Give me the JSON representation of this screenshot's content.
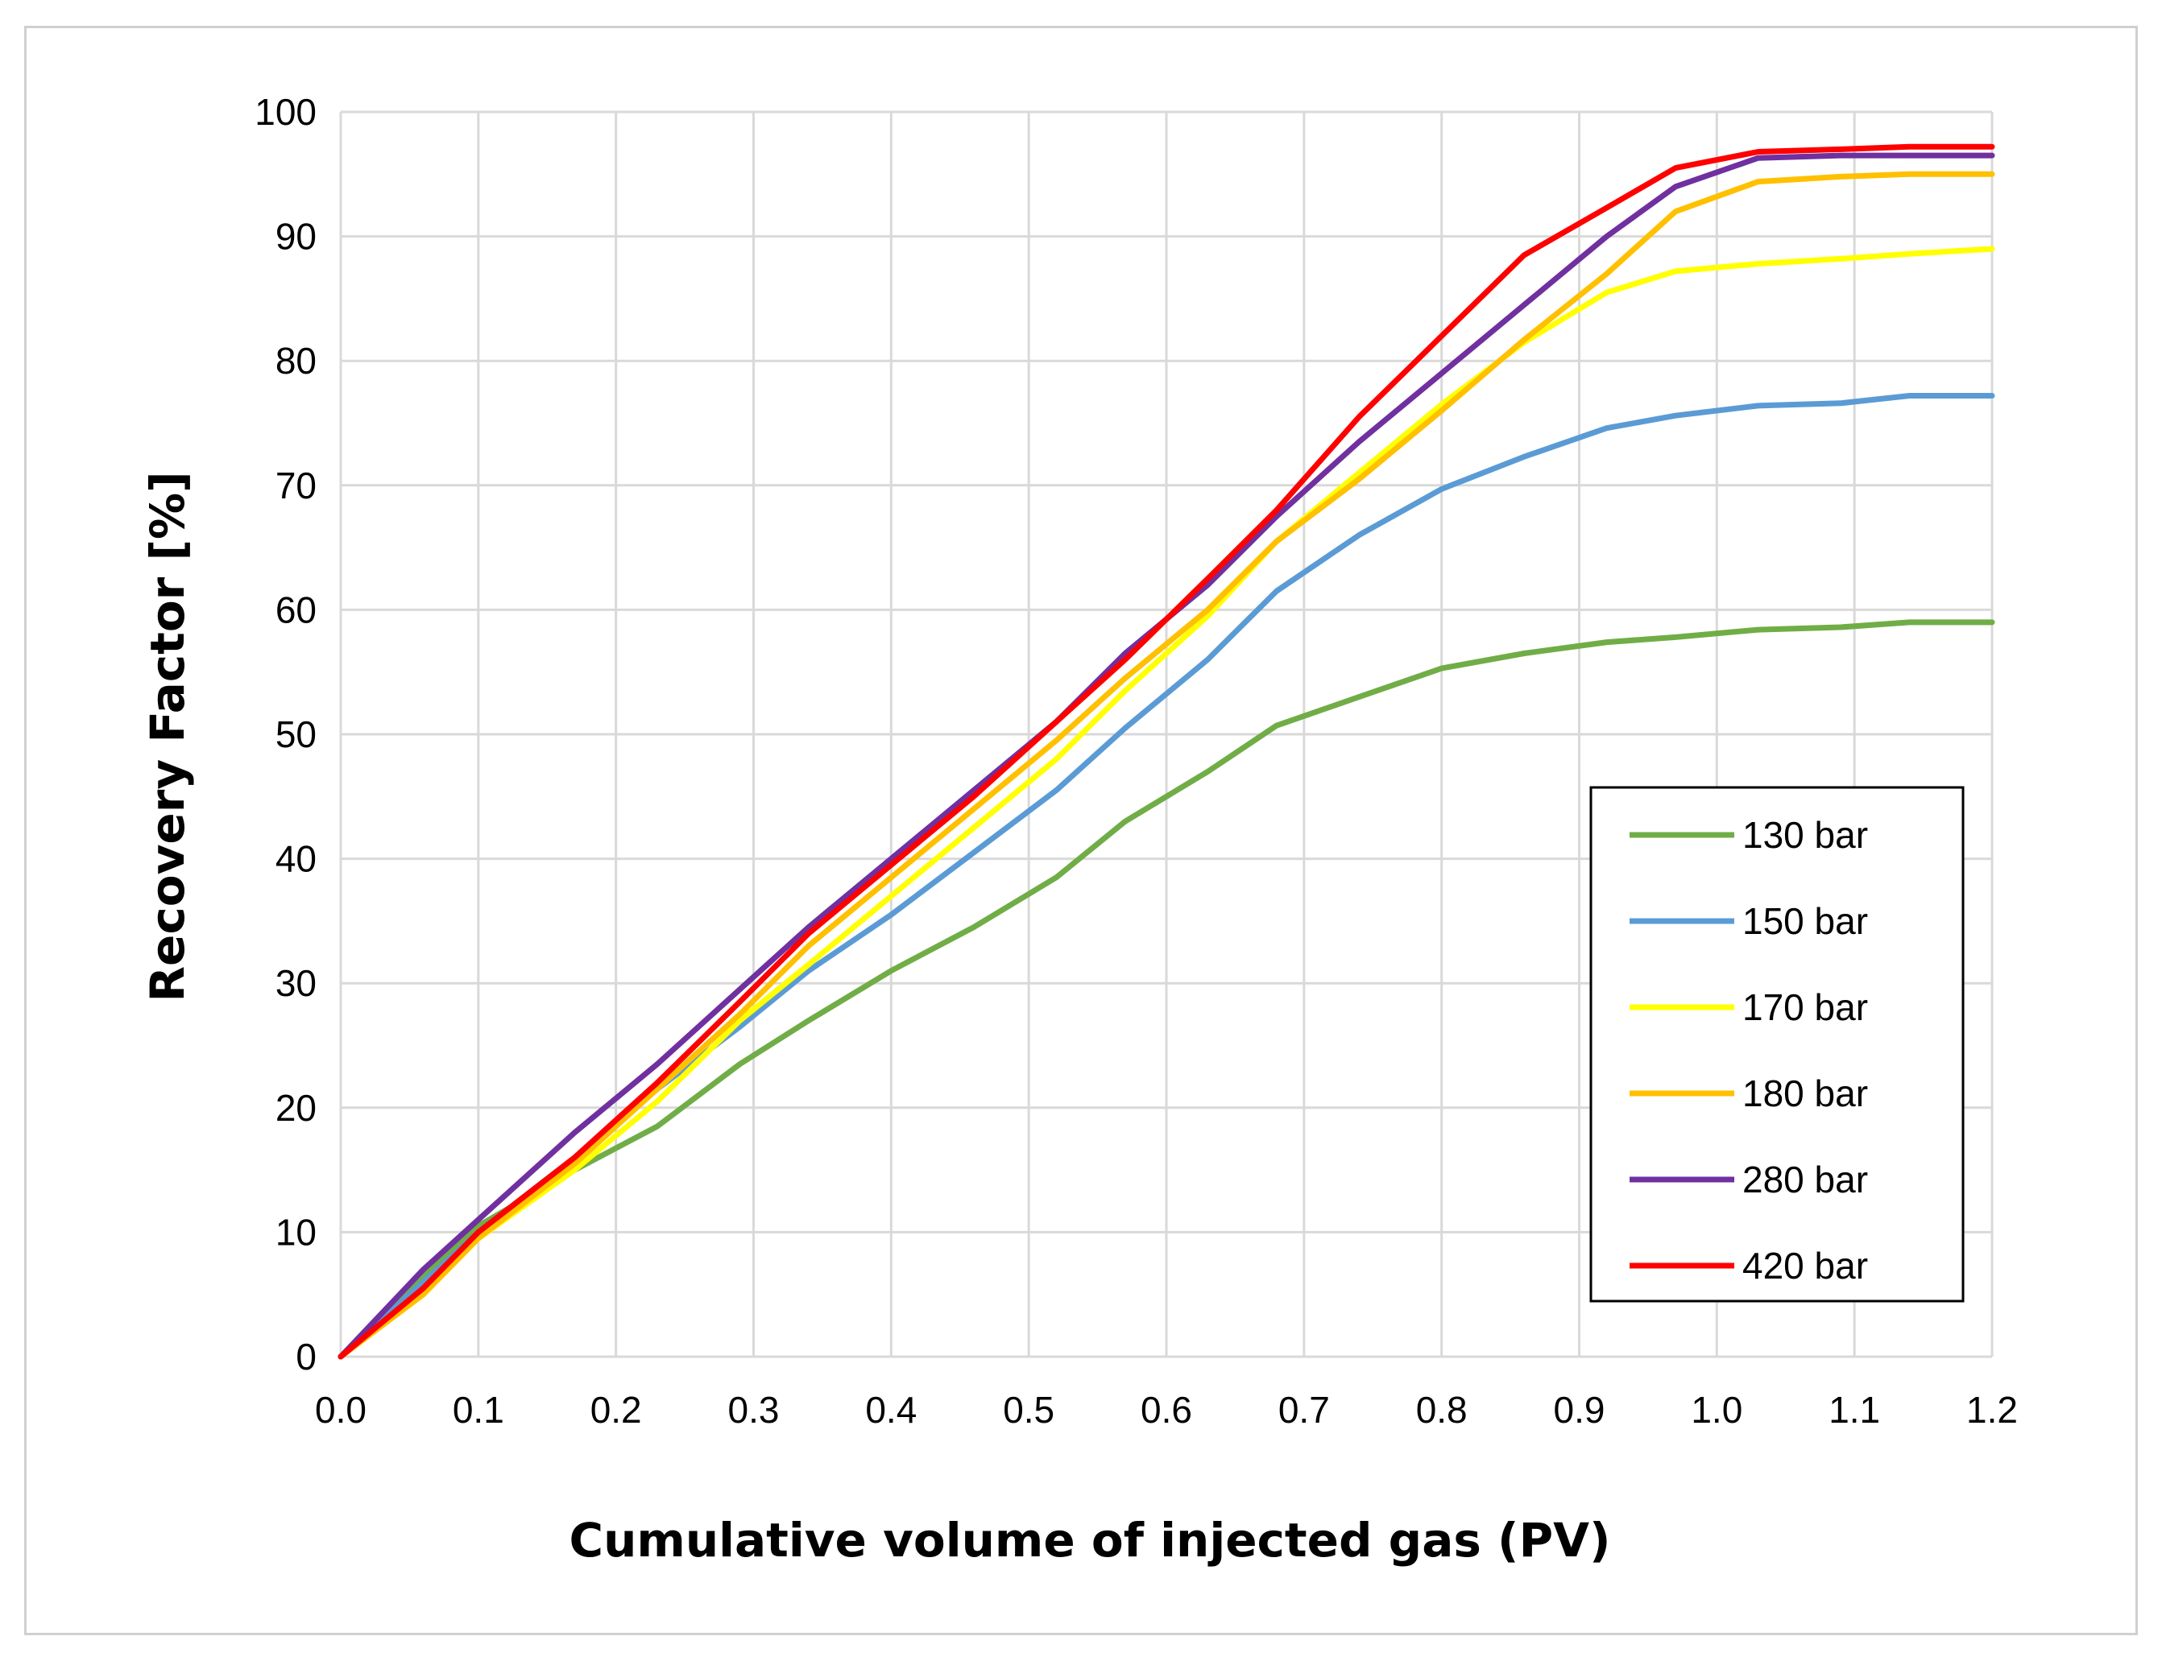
{
  "chart_data": {
    "type": "line",
    "title": "",
    "xlabel": "Cumulative volume of injected gas (PV)",
    "ylabel": "Recovery Factor [%]",
    "xlim": [
      0,
      1.2
    ],
    "ylim": [
      0,
      100
    ],
    "xticks": [
      "0.0",
      "0.1",
      "0.2",
      "0.3",
      "0.4",
      "0.5",
      "0.6",
      "0.7",
      "0.8",
      "0.9",
      "1.0",
      "1.1",
      "1.2"
    ],
    "yticks": [
      "0",
      "10",
      "20",
      "30",
      "40",
      "50",
      "60",
      "70",
      "80",
      "90",
      "100"
    ],
    "grid": true,
    "legend_position": "lower-right",
    "series": [
      {
        "name": "130 bar",
        "color": "#70ad47",
        "x": [
          0,
          0.05,
          0.1,
          0.17,
          0.23,
          0.29,
          0.34,
          0.4,
          0.46,
          0.52,
          0.57,
          0.63,
          0.68,
          0.74,
          0.8,
          0.86,
          0.92,
          0.97,
          1.03,
          1.09,
          1.14,
          1.2
        ],
        "y": [
          0,
          5.5,
          10.5,
          15,
          18.5,
          23.5,
          27,
          31,
          34.5,
          38.5,
          43,
          47,
          50.7,
          53,
          55.3,
          56.5,
          57.4,
          57.8,
          58.4,
          58.6,
          59,
          59
        ]
      },
      {
        "name": "150 bar",
        "color": "#5b9bd5",
        "x": [
          0,
          0.05,
          0.1,
          0.17,
          0.23,
          0.29,
          0.34,
          0.4,
          0.46,
          0.52,
          0.57,
          0.63,
          0.68,
          0.74,
          0.8,
          0.86,
          0.92,
          0.97,
          1.03,
          1.09,
          1.14,
          1.2
        ],
        "y": [
          0,
          5,
          10,
          16,
          21.5,
          26.5,
          31,
          35.5,
          40.5,
          45.5,
          50.5,
          56,
          61.5,
          66,
          69.7,
          72.3,
          74.6,
          75.6,
          76.4,
          76.6,
          77.2,
          77.2
        ]
      },
      {
        "name": "170 bar",
        "color": "#ffff00",
        "x": [
          0,
          0.06,
          0.1,
          0.17,
          0.23,
          0.29,
          0.34,
          0.4,
          0.46,
          0.52,
          0.57,
          0.63,
          0.68,
          0.74,
          0.8,
          0.86,
          0.92,
          0.97,
          1.03,
          1.09,
          1.14,
          1.2
        ],
        "y": [
          0,
          5,
          9.5,
          15,
          20.5,
          27,
          31.5,
          37,
          42.5,
          48,
          53.5,
          59.5,
          65.5,
          71,
          76.5,
          81.5,
          85.5,
          87.2,
          87.8,
          88.2,
          88.6,
          89
        ]
      },
      {
        "name": "180 bar",
        "color": "#ffc000",
        "x": [
          0,
          0.06,
          0.1,
          0.17,
          0.23,
          0.29,
          0.34,
          0.4,
          0.46,
          0.52,
          0.57,
          0.63,
          0.68,
          0.74,
          0.8,
          0.86,
          0.92,
          0.97,
          1.03,
          1.09,
          1.14,
          1.2
        ],
        "y": [
          0,
          5,
          9.5,
          15.5,
          21.5,
          27.5,
          33,
          38.5,
          44,
          49.5,
          54.5,
          60,
          65.5,
          70.5,
          76,
          81.7,
          87,
          92,
          94.4,
          94.8,
          95,
          95
        ]
      },
      {
        "name": "280 bar",
        "color": "#7030a0",
        "x": [
          0,
          0.06,
          0.1,
          0.17,
          0.23,
          0.29,
          0.34,
          0.4,
          0.46,
          0.52,
          0.57,
          0.63,
          0.68,
          0.74,
          0.8,
          0.86,
          0.92,
          0.97,
          1.03,
          1.09,
          1.14,
          1.2
        ],
        "y": [
          0,
          7,
          11,
          18,
          23.5,
          29.5,
          34.5,
          40,
          45.5,
          51,
          56.5,
          62,
          67.5,
          73.5,
          79,
          84.5,
          90,
          94,
          96.3,
          96.5,
          96.5,
          96.5
        ]
      },
      {
        "name": "420 bar",
        "color": "#ff0000",
        "x": [
          0,
          0.06,
          0.1,
          0.17,
          0.23,
          0.29,
          0.34,
          0.4,
          0.46,
          0.52,
          0.57,
          0.63,
          0.68,
          0.74,
          0.8,
          0.86,
          0.92,
          0.97,
          1.03,
          1.09,
          1.14,
          1.2
        ],
        "y": [
          0,
          5.5,
          10,
          16,
          22,
          28.5,
          34,
          39.5,
          45,
          51,
          56,
          62.5,
          68,
          75.5,
          82,
          88.5,
          92.3,
          95.5,
          96.8,
          97,
          97.2,
          97.2
        ]
      }
    ]
  }
}
